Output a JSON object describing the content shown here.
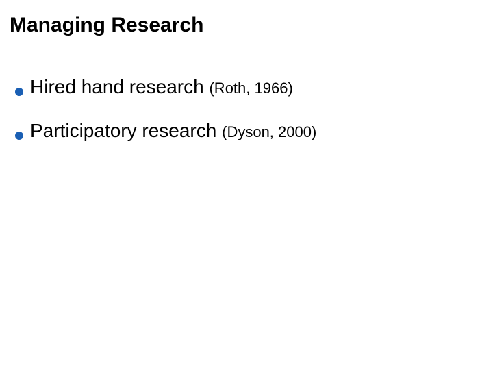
{
  "slide": {
    "title": "Managing Research",
    "title_fontsize": 30,
    "title_color": "#000000",
    "background_color": "#ffffff",
    "bullets": [
      {
        "text": "Hired hand research",
        "citation": "(Roth, 1966)"
      },
      {
        "text": "Participatory research",
        "citation": "(Dyson, 2000)"
      }
    ],
    "bullet_color": "#1a5fb4",
    "bullet_text_fontsize": 28,
    "citation_fontsize": 22,
    "text_color": "#000000"
  }
}
